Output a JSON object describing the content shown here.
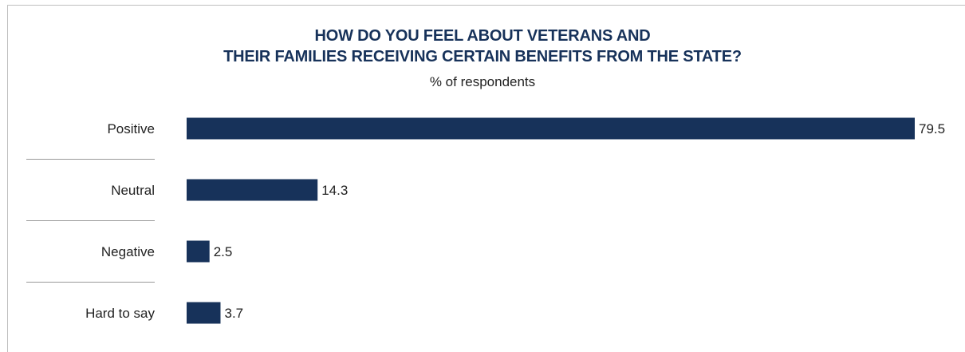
{
  "chart_data": {
    "type": "bar",
    "orientation": "horizontal",
    "title_lines": [
      "HOW DO YOU FEEL ABOUT VETERANS AND",
      "THEIR FAMILIES RECEIVING CERTAIN BENEFITS FROM THE STATE?"
    ],
    "subtitle": "% of respondents",
    "categories": [
      "Positive",
      "Neutral",
      "Negative",
      "Hard to say"
    ],
    "values": [
      79.5,
      14.3,
      2.5,
      3.7
    ],
    "value_labels": [
      "79.5",
      "14.3",
      "2.5",
      "3.7"
    ],
    "xlim": [
      0,
      79.5
    ],
    "bar_color": "#17325a",
    "separator_color": "#9a9a9a",
    "grid": false,
    "legend": "none"
  }
}
